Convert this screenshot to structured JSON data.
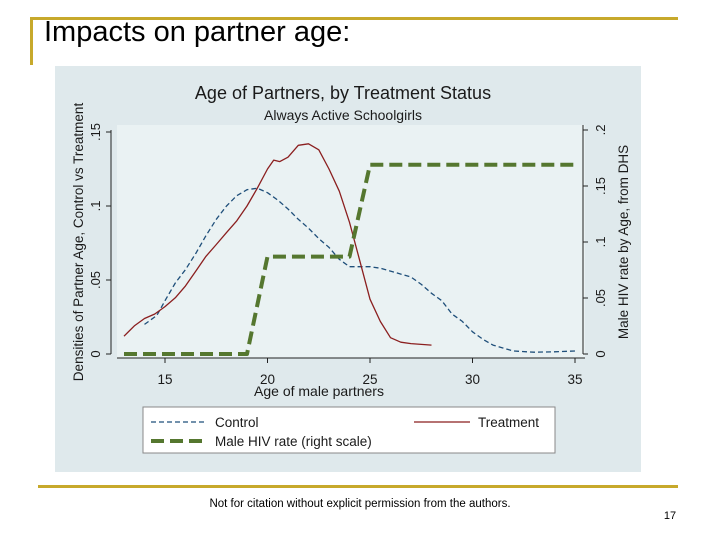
{
  "slide": {
    "title": "Impacts on partner age:",
    "footer_note": "Not for citation without explicit permission from the authors.",
    "page_number": "17"
  },
  "colors": {
    "accent_gold": "#c7a92b",
    "plot_region": "#eaf2f3",
    "panel_bg": "#dfe9ec",
    "control": "#1f4f7a",
    "treatment": "#8b1f1f",
    "hiv": "#55772f"
  },
  "chart_data": {
    "type": "line",
    "title": "Age of Partners, by Treatment Status",
    "subtitle": "Always Active Schoolgirls",
    "xlabel": "Age of male partners",
    "ylabel_left": "Densities of Partner Age, Control vs Treatment",
    "ylabel_right": "Male HIV rate by Age, from DHS",
    "xlim": [
      12.8,
      35.2
    ],
    "ylim_left": [
      0,
      0.15
    ],
    "ylim_right": [
      0,
      0.2
    ],
    "x_ticks": [
      "15",
      "20",
      "25",
      "30",
      "35"
    ],
    "y_ticks_left": [
      "0",
      ".05",
      ".1",
      ".15"
    ],
    "y_ticks_right": [
      "0",
      ".05",
      ".1",
      ".15",
      ".2"
    ],
    "series": [
      {
        "name": "Control",
        "axis": "left",
        "style": "dashed",
        "points": [
          [
            14,
            0.02
          ],
          [
            14.6,
            0.026
          ],
          [
            15,
            0.036
          ],
          [
            15.5,
            0.048
          ],
          [
            16,
            0.057
          ],
          [
            16.5,
            0.068
          ],
          [
            17,
            0.08
          ],
          [
            17.5,
            0.091
          ],
          [
            18,
            0.1
          ],
          [
            18.5,
            0.107
          ],
          [
            19,
            0.111
          ],
          [
            19.5,
            0.112
          ],
          [
            20,
            0.109
          ],
          [
            20.5,
            0.104
          ],
          [
            21,
            0.098
          ],
          [
            21.5,
            0.091
          ],
          [
            22,
            0.085
          ],
          [
            22.5,
            0.078
          ],
          [
            23,
            0.072
          ],
          [
            23.5,
            0.064
          ],
          [
            24,
            0.059
          ],
          [
            24.5,
            0.059
          ],
          [
            25,
            0.059
          ],
          [
            25.5,
            0.058
          ],
          [
            26,
            0.056
          ],
          [
            26.5,
            0.054
          ],
          [
            27,
            0.052
          ],
          [
            27.5,
            0.047
          ],
          [
            28,
            0.041
          ],
          [
            28.5,
            0.036
          ],
          [
            29,
            0.027
          ],
          [
            29.5,
            0.022
          ],
          [
            30,
            0.015
          ],
          [
            30.5,
            0.01
          ],
          [
            31,
            0.006
          ],
          [
            31.5,
            0.004
          ],
          [
            32,
            0.002
          ],
          [
            33,
            0.0012
          ],
          [
            34,
            0.0015
          ],
          [
            35,
            0.002
          ]
        ]
      },
      {
        "name": "Treatment",
        "axis": "left",
        "style": "solid",
        "points": [
          [
            13,
            0.012
          ],
          [
            13.5,
            0.019
          ],
          [
            14,
            0.024
          ],
          [
            14.5,
            0.027
          ],
          [
            15,
            0.032
          ],
          [
            15.5,
            0.038
          ],
          [
            16,
            0.046
          ],
          [
            16.5,
            0.056
          ],
          [
            17,
            0.066
          ],
          [
            17.5,
            0.074
          ],
          [
            18,
            0.082
          ],
          [
            18.5,
            0.09
          ],
          [
            19,
            0.1
          ],
          [
            19.5,
            0.112
          ],
          [
            20,
            0.125
          ],
          [
            20.3,
            0.131
          ],
          [
            20.6,
            0.13
          ],
          [
            21,
            0.133
          ],
          [
            21.5,
            0.141
          ],
          [
            22,
            0.142
          ],
          [
            22.5,
            0.138
          ],
          [
            23,
            0.125
          ],
          [
            23.5,
            0.11
          ],
          [
            24,
            0.089
          ],
          [
            24.5,
            0.063
          ],
          [
            25,
            0.037
          ],
          [
            25.5,
            0.022
          ],
          [
            26,
            0.011
          ],
          [
            26.5,
            0.008
          ],
          [
            27,
            0.007
          ],
          [
            28,
            0.006
          ]
        ]
      },
      {
        "name": "Male HIV rate (right scale)",
        "axis": "right",
        "style": "long-dashed",
        "points": [
          [
            13,
            0
          ],
          [
            19,
            0
          ],
          [
            20,
            0.087
          ],
          [
            24,
            0.087
          ],
          [
            25,
            0.169
          ],
          [
            35,
            0.169
          ]
        ]
      }
    ],
    "legend": {
      "position": "bottom",
      "entries": [
        "Control",
        "Treatment",
        "Male HIV rate (right scale)"
      ]
    }
  }
}
